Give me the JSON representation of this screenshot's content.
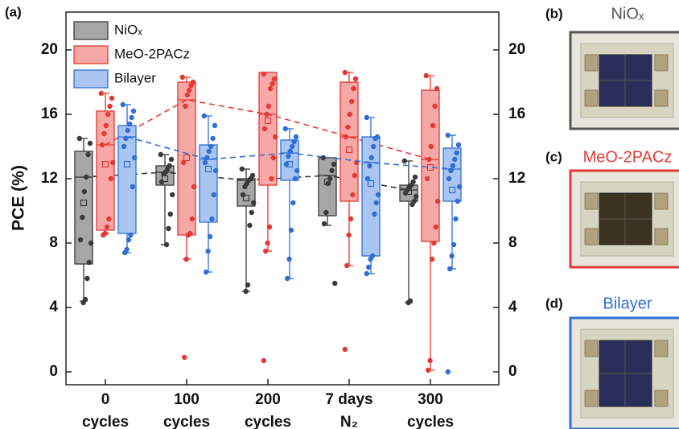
{
  "chart_data": {
    "type": "box",
    "y_label": "PCE (%)",
    "panel_tag": "(a)",
    "categories": [
      "0",
      "100",
      "200",
      "7 days",
      "300"
    ],
    "category_sublabels": [
      "cycles",
      "cycles",
      "cycles",
      "N₂",
      "cycles"
    ],
    "ylim": [
      -0.8,
      22.35
    ],
    "yticks": [
      0,
      4,
      8,
      12,
      16,
      20
    ],
    "y2lim": [
      -0.8,
      22.35
    ],
    "y2ticks": [
      0,
      4,
      8,
      12,
      16,
      20
    ],
    "legend": "upper left",
    "median_line": "dashed",
    "series": [
      {
        "name": "NiOₓ",
        "color": "#3a3a3a",
        "fill": "#a6a6a6",
        "boxes": [
          {
            "q1": 6.7,
            "median": 12.1,
            "q3": 13.7,
            "low": 4.4,
            "high": 14.5,
            "mean": 10.5
          },
          {
            "q1": 11.6,
            "median": 12.4,
            "q3": 12.8,
            "low": 7.9,
            "high": 13.5,
            "mean": 12.0
          },
          {
            "q1": 10.3,
            "median": 11.9,
            "q3": 12.0,
            "low": 5.0,
            "high": 12.6,
            "mean": 10.8
          },
          {
            "q1": 9.7,
            "median": 12.2,
            "q3": 13.3,
            "low": 9.1,
            "high": 13.3,
            "mean": 11.8
          },
          {
            "q1": 10.6,
            "median": 11.3,
            "q3": 11.6,
            "low": 4.3,
            "high": 13.1,
            "mean": 11.2
          }
        ],
        "points": [
          [
            14.5,
            14.2,
            13.5,
            12.1,
            11.2,
            9.6,
            8.2,
            8.0,
            6.8,
            5.8,
            4.5,
            4.3
          ],
          [
            13.5,
            13.2,
            12.8,
            12.6,
            12.4,
            12.3,
            11.8,
            11.0,
            9.8,
            8.9,
            7.9
          ],
          [
            12.6,
            12.2,
            12.0,
            11.9,
            11.7,
            11.5,
            11.0,
            10.5,
            9.9,
            9.1,
            5.4,
            5.0
          ],
          [
            13.3,
            12.9,
            12.5,
            12.0,
            11.7,
            9.9,
            9.2,
            5.5
          ],
          [
            13.1,
            12.1,
            11.8,
            11.6,
            11.5,
            11.3,
            11.1,
            10.9,
            10.6,
            10.4,
            4.4,
            4.3
          ]
        ]
      },
      {
        "name": "MeO-2PACz",
        "color": "#e53935",
        "fill": "#f6a8a6",
        "boxes": [
          {
            "q1": 8.8,
            "median": 14.1,
            "q3": 16.2,
            "low": 8.6,
            "high": 17.3,
            "mean": 12.9
          },
          {
            "q1": 8.5,
            "median": 16.9,
            "q3": 18.0,
            "low": 7.0,
            "high": 18.3,
            "mean": 13.3
          },
          {
            "q1": 11.6,
            "median": 16.0,
            "q3": 18.6,
            "low": 7.5,
            "high": 18.6,
            "mean": 15.6
          },
          {
            "q1": 10.6,
            "median": 14.6,
            "q3": 18.0,
            "low": 6.6,
            "high": 18.6,
            "mean": 13.8
          },
          {
            "q1": 8.1,
            "median": 13.2,
            "q3": 17.5,
            "low": 0.1,
            "high": 18.4,
            "mean": 12.7
          }
        ],
        "points": [
          [
            17.3,
            17.0,
            16.5,
            16.0,
            15.3,
            14.8,
            14.1,
            13.0,
            12.0,
            9.5,
            9.0,
            8.6,
            8.5
          ],
          [
            18.3,
            18.0,
            17.8,
            17.5,
            17.2,
            16.5,
            13.0,
            11.5,
            9.5,
            8.6,
            8.5,
            7.0,
            0.9
          ],
          [
            18.5,
            18.2,
            17.9,
            17.6,
            16.5,
            16.0,
            15.1,
            14.6,
            13.3,
            12.0,
            9.0,
            8.0,
            7.5,
            0.7
          ],
          [
            18.6,
            18.2,
            17.6,
            16.8,
            16.0,
            15.2,
            14.6,
            13.0,
            12.2,
            11.0,
            9.5,
            8.5,
            6.6,
            1.4
          ],
          [
            18.4,
            17.6,
            16.5,
            15.3,
            14.0,
            13.2,
            12.0,
            10.6,
            9.0,
            8.0,
            7.0,
            0.7,
            0.1
          ]
        ]
      },
      {
        "name": "Bilayer",
        "color": "#2f6fd6",
        "fill": "#a9c5f0",
        "boxes": [
          {
            "q1": 8.6,
            "median": 14.6,
            "q3": 15.3,
            "low": 7.4,
            "high": 16.6,
            "mean": 12.9
          },
          {
            "q1": 9.3,
            "median": 13.2,
            "q3": 14.1,
            "low": 6.2,
            "high": 15.9,
            "mean": 12.6
          },
          {
            "q1": 11.9,
            "median": 13.6,
            "q3": 14.4,
            "low": 5.8,
            "high": 15.1,
            "mean": 12.9
          },
          {
            "q1": 7.2,
            "median": 13.0,
            "q3": 14.6,
            "low": 6.1,
            "high": 15.8,
            "mean": 11.7
          },
          {
            "q1": 10.6,
            "median": 12.6,
            "q3": 13.9,
            "low": 6.4,
            "high": 14.7,
            "mean": 11.3
          }
        ],
        "points": [
          [
            16.6,
            16.2,
            15.8,
            15.4,
            15.0,
            14.5,
            14.0,
            13.3,
            11.5,
            8.5,
            8.2,
            7.6,
            7.4
          ],
          [
            15.9,
            15.3,
            14.5,
            14.0,
            13.7,
            13.3,
            13.0,
            12.5,
            11.0,
            9.5,
            8.4,
            7.5,
            6.2
          ],
          [
            15.1,
            14.6,
            14.3,
            14.0,
            13.7,
            13.4,
            12.9,
            12.5,
            12.0,
            10.5,
            8.8,
            7.0,
            5.8
          ],
          [
            15.8,
            14.6,
            14.5,
            14.0,
            13.3,
            12.8,
            12.0,
            11.0,
            10.5,
            9.8,
            7.2,
            7.0,
            6.5,
            6.1
          ],
          [
            14.7,
            14.1,
            13.6,
            13.2,
            12.8,
            12.5,
            12.0,
            11.5,
            10.6,
            9.5,
            7.9,
            7.2,
            6.4,
            0
          ]
        ]
      }
    ]
  },
  "photos": [
    {
      "tag": "(b)",
      "label": "NiOₓ",
      "color": "#555555"
    },
    {
      "tag": "(c)",
      "label": "MeO-2PACz",
      "color": "#e53935"
    },
    {
      "tag": "(d)",
      "label": "Bilayer",
      "color": "#2f6fd6"
    }
  ]
}
